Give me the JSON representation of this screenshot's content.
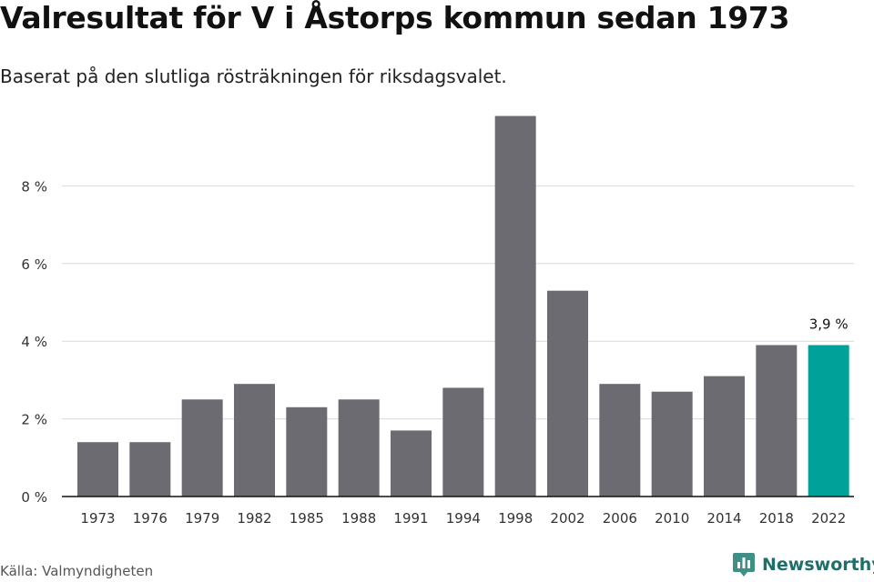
{
  "header": {
    "title": "Valresultat för V i Åstorps kommun sedan 1973",
    "subtitle": "Baserat på den slutliga rösträkningen för riksdagsvalet."
  },
  "footer": {
    "source": "Källa: Valmyndigheten",
    "brand": "Newsworthy",
    "brand_icon": "newsworthy-logo-icon"
  },
  "colors": {
    "bar": "#6d6b72",
    "highlight": "#00a198",
    "grid": "#d9d9d9",
    "axis": "#111111"
  },
  "chart_data": {
    "type": "bar",
    "categories": [
      "1973",
      "1976",
      "1979",
      "1982",
      "1985",
      "1988",
      "1991",
      "1994",
      "1998",
      "2002",
      "2006",
      "2010",
      "2014",
      "2018",
      "2022"
    ],
    "values": [
      1.4,
      1.4,
      2.5,
      2.9,
      2.3,
      2.5,
      1.7,
      2.8,
      9.8,
      5.3,
      2.9,
      2.7,
      3.1,
      3.9,
      3.9
    ],
    "highlight_category": "2022",
    "data_labels": [
      {
        "category": "2022",
        "text": "3,9 %"
      }
    ],
    "yticks": [
      0,
      2,
      4,
      6,
      8
    ],
    "ytick_labels": [
      "0 %",
      "2 %",
      "4 %",
      "6 %",
      "8 %"
    ],
    "ylim": [
      0,
      10
    ],
    "grid": true,
    "xlabel": "",
    "ylabel": ""
  }
}
